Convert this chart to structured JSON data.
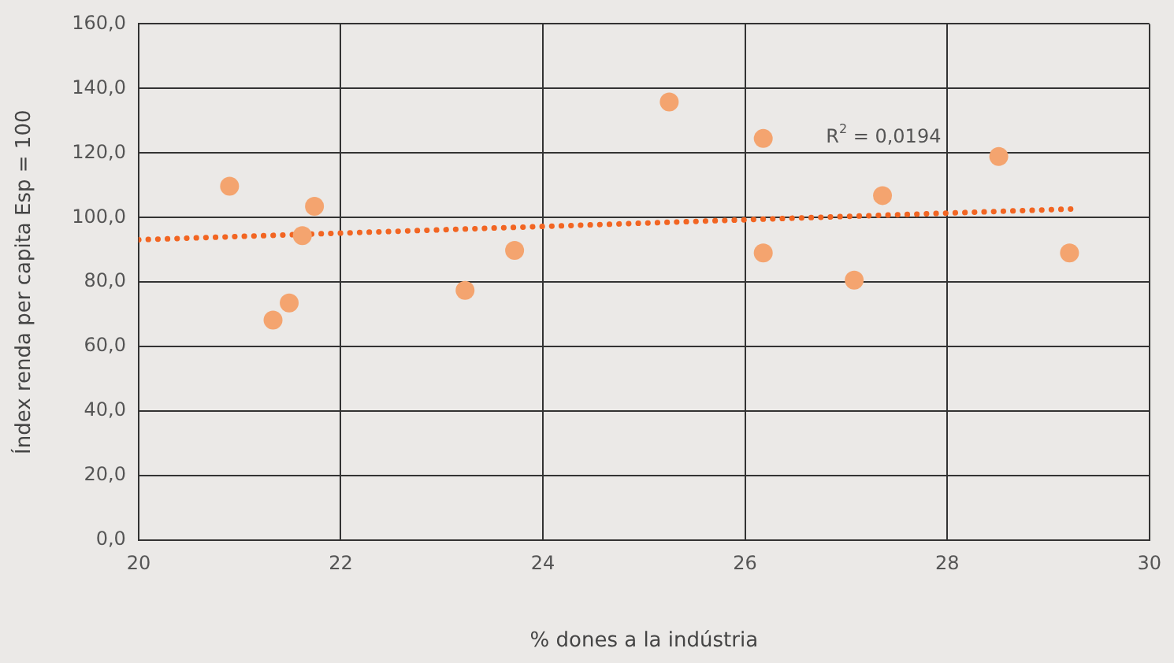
{
  "chart_data": {
    "type": "scatter",
    "xlabel": "% dones a la indústria",
    "ylabel": "Índex renda per capita Esp = 100",
    "series": [
      {
        "type": "scatter",
        "color": "#f4a46f",
        "x": [
          20.9,
          21.74,
          21.62,
          21.49,
          21.33,
          23.23,
          23.72,
          25.25,
          26.18,
          26.18,
          27.08,
          27.36,
          28.51,
          29.21
        ],
        "values": [
          109.7,
          103.5,
          94.4,
          73.5,
          68.2,
          77.4,
          89.8,
          135.8,
          124.5,
          89.0,
          80.6,
          106.8,
          118.9,
          89.0
        ],
        "marker": "circle"
      },
      {
        "type": "line",
        "color": "#f26522",
        "x": [
          20,
          29.28
        ],
        "values": [
          93.1,
          102.7
        ],
        "line_style": "dotted",
        "marker": "none"
      }
    ],
    "xlim": [
      20,
      30
    ],
    "xticks": [
      20,
      22,
      24,
      26,
      28,
      30
    ],
    "ylim": [
      0,
      160
    ],
    "yticks": [
      {
        "value": 0,
        "label": "0,0"
      },
      {
        "value": 20,
        "label": "20,0"
      },
      {
        "value": 40,
        "label": "40,0"
      },
      {
        "value": 60,
        "label": "60,0"
      },
      {
        "value": 80,
        "label": "80,0"
      },
      {
        "value": 100,
        "label": "100,0"
      },
      {
        "value": 120,
        "label": "120,0"
      },
      {
        "value": 140,
        "label": "140,0"
      },
      {
        "value": 160,
        "label": "160,0"
      }
    ],
    "annotations": [
      "R$^{2}$ = 0,0194"
    ],
    "grid": true,
    "legend": false
  }
}
